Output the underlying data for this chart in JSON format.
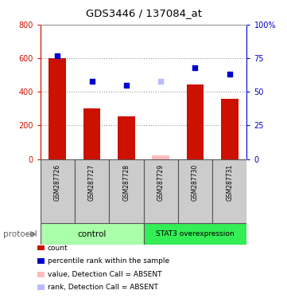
{
  "title": "GDS3446 / 137084_at",
  "samples": [
    "GSM287726",
    "GSM287727",
    "GSM287728",
    "GSM287729",
    "GSM287730",
    "GSM287731"
  ],
  "count_values": [
    600,
    300,
    255,
    20,
    445,
    360
  ],
  "percentile_values": [
    77,
    58,
    55,
    null,
    68,
    63
  ],
  "absent_count": [
    null,
    null,
    null,
    20,
    null,
    null
  ],
  "absent_rank": [
    null,
    null,
    null,
    58,
    null,
    null
  ],
  "ylim_left": [
    0,
    800
  ],
  "ylim_right": [
    0,
    100
  ],
  "yticks_left": [
    0,
    200,
    400,
    600,
    800
  ],
  "ytick_labels_left": [
    "0",
    "200",
    "400",
    "600",
    "800"
  ],
  "yticks_right": [
    0,
    25,
    50,
    75,
    100
  ],
  "ytick_labels_right": [
    "0",
    "25",
    "50",
    "75",
    "100%"
  ],
  "bar_color": "#cc1100",
  "dot_color": "#0000cc",
  "absent_bar_color": "#ffbbbb",
  "absent_dot_color": "#bbbbff",
  "grid_color": "#999999",
  "bg_color": "#ffffff",
  "sample_bg_color": "#cccccc",
  "control_color": "#aaffaa",
  "stat3_color": "#33ee55",
  "legend_items": [
    {
      "label": "count",
      "color": "#cc1100"
    },
    {
      "label": "percentile rank within the sample",
      "color": "#0000cc"
    },
    {
      "label": "value, Detection Call = ABSENT",
      "color": "#ffbbbb"
    },
    {
      "label": "rank, Detection Call = ABSENT",
      "color": "#bbbbff"
    }
  ],
  "left_axis_color": "#cc1100",
  "right_axis_color": "#0000cc"
}
